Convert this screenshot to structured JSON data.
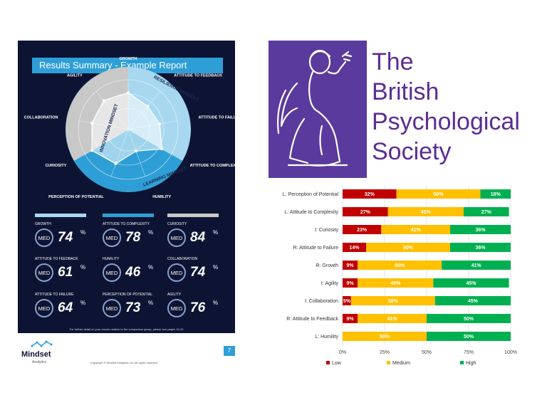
{
  "report": {
    "title": "Results Summary - Example Report",
    "radar_labels": [
      "GROWTH",
      "ATTITUDE TO FEEDBACK",
      "ATTITUDE TO FAILURE",
      "ATTITUDE TO COMPLEXITY",
      "HUMILITY",
      "PERCEPTION OF POTENTIAL",
      "CURIOSITY",
      "COLLABORATION",
      "AGILITY"
    ],
    "ring_labels": {
      "resilience": "RESILIENCE MINDSET",
      "learning": "LEARNING MINDSET",
      "innovation": "INNOVATION MINDSET"
    },
    "column_bar_colors": [
      "#a8d8f0",
      "#2e9fd6",
      "#c8c8c8"
    ],
    "metrics": [
      {
        "label": "GROWTH",
        "med": "MED",
        "value": "74",
        "unit": "%"
      },
      {
        "label": "ATTITUDE TO COMPLEXITY",
        "med": "MED",
        "value": "78",
        "unit": "%"
      },
      {
        "label": "CURIOSITY",
        "med": "MED",
        "value": "84",
        "unit": "%"
      },
      {
        "label": "ATTITUDE TO FEEDBACK",
        "med": "MED",
        "value": "61",
        "unit": "%"
      },
      {
        "label": "HUMILITY",
        "med": "MED",
        "value": "46",
        "unit": "%"
      },
      {
        "label": "COLLABORATION",
        "med": "MED",
        "value": "74",
        "unit": "%"
      },
      {
        "label": "ATTITUDE TO FAILURE",
        "med": "MED",
        "value": "64",
        "unit": "%"
      },
      {
        "label": "PERCEPTION OF POTENTIAL",
        "med": "MED",
        "value": "73",
        "unit": "%"
      },
      {
        "label": "AGILITY",
        "med": "MED",
        "value": "76",
        "unit": "%"
      }
    ],
    "footnote": "For further detail on your results relative to the comparison group, please see pages 15-20",
    "page_number": "7",
    "brand_name": "Mindset",
    "brand_sub": "Analytics",
    "copyright": "Copyright © Mindset Analytics Ltd. All rights reserved."
  },
  "bps": {
    "lines": [
      "The",
      "British",
      "Psychological",
      "Society"
    ],
    "purple": "#5b2d91"
  },
  "chart_data": {
    "type": "bar",
    "orientation": "horizontal-stacked-100",
    "categories": [
      "L: Perception of Potential",
      "L: Attitude to Complexity",
      "I: Curiosity",
      "R: Attitude to Failure",
      "R: Growth",
      "I: Agility",
      "I: Collaboration",
      "R: Attitude to Feedback",
      "L: Humility"
    ],
    "series": [
      {
        "name": "Low",
        "color": "#c00000",
        "values": [
          32,
          27,
          23,
          14,
          9,
          9,
          5,
          9,
          0
        ]
      },
      {
        "name": "Medium",
        "color": "#ffc000",
        "values": [
          50,
          45,
          41,
          50,
          50,
          45,
          50,
          41,
          50
        ]
      },
      {
        "name": "High",
        "color": "#00b050",
        "values": [
          18,
          27,
          36,
          36,
          41,
          45,
          45,
          50,
          50
        ]
      }
    ],
    "xticks": [
      "0%",
      "25%",
      "50%",
      "75%",
      "100%"
    ],
    "xlim": [
      0,
      100
    ],
    "legend_position": "bottom"
  }
}
